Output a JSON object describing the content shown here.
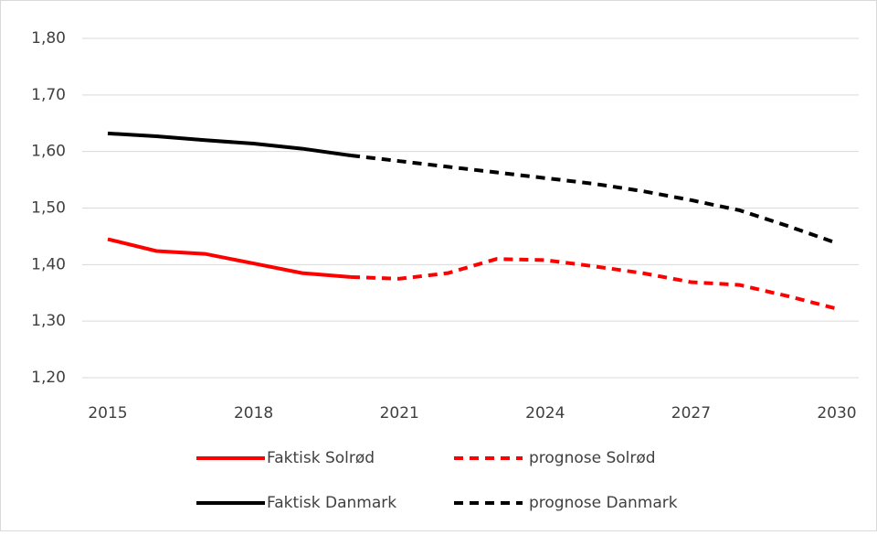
{
  "chart_data": {
    "type": "line",
    "x": [
      2015,
      2016,
      2017,
      2018,
      2019,
      2020,
      2021,
      2022,
      2023,
      2024,
      2025,
      2026,
      2027,
      2028,
      2029,
      2030
    ],
    "xlim": [
      2015,
      2030
    ],
    "xticks": [
      2015,
      2018,
      2021,
      2024,
      2027,
      2030
    ],
    "ylim": [
      1.2,
      1.8
    ],
    "yticks": [
      {
        "value": 1.2,
        "label": "1,20"
      },
      {
        "value": 1.3,
        "label": "1,30"
      },
      {
        "value": 1.4,
        "label": "1,40"
      },
      {
        "value": 1.5,
        "label": "1,50"
      },
      {
        "value": 1.6,
        "label": "1,60"
      },
      {
        "value": 1.7,
        "label": "1,70"
      },
      {
        "value": 1.8,
        "label": "1,80"
      }
    ],
    "grid": true,
    "legend": "bottom",
    "series": [
      {
        "name": "Faktisk Solrød",
        "color": "#ff0000",
        "line_style": "solid",
        "values": [
          1.445,
          1.424,
          1.419,
          1.402,
          1.385,
          1.378,
          null,
          null,
          null,
          null,
          null,
          null,
          null,
          null,
          null,
          null
        ]
      },
      {
        "name": "prognose Solrød",
        "color": "#ff0000",
        "line_style": "dashed",
        "values": [
          null,
          null,
          null,
          null,
          null,
          1.378,
          1.375,
          1.385,
          1.41,
          1.408,
          1.397,
          1.385,
          1.369,
          1.364,
          1.344,
          1.322
        ]
      },
      {
        "name": "Faktisk Danmark",
        "color": "#000000",
        "line_style": "solid",
        "values": [
          1.632,
          1.627,
          1.62,
          1.614,
          1.605,
          1.593,
          null,
          null,
          null,
          null,
          null,
          null,
          null,
          null,
          null,
          null
        ]
      },
      {
        "name": "prognose Danmark",
        "color": "#000000",
        "line_style": "dashed",
        "values": [
          null,
          null,
          null,
          null,
          null,
          1.593,
          1.583,
          1.573,
          1.563,
          1.553,
          1.543,
          1.53,
          1.514,
          1.496,
          1.468,
          1.438
        ]
      }
    ]
  }
}
